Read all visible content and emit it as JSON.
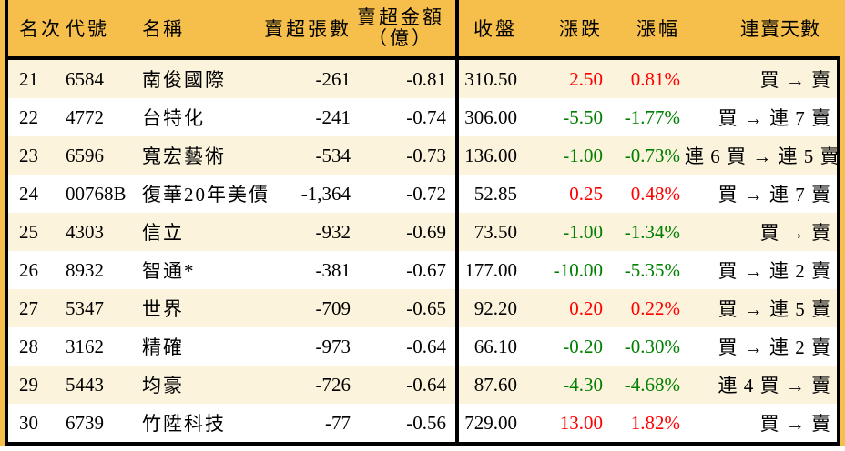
{
  "colors": {
    "page_and_header_bg": "#F6BF4C",
    "row_alt_bg": "#FCF3DC",
    "row_bg": "#FFFFFF",
    "border": "#000000",
    "gain_red": "#FF0000",
    "loss_green": "#008000"
  },
  "header": {
    "rank": "名次",
    "code": "代號",
    "name": "名稱",
    "sell_shares": "賣超張數",
    "sell_amount_line1": "賣超金額",
    "sell_amount_line2": "（億）",
    "close": "收盤",
    "change": "漲跌",
    "change_pct": "漲幅",
    "streak": "連賣天數"
  },
  "table": {
    "rows": [
      {
        "rank": "21",
        "code": "6584",
        "name": "南俊國際",
        "sell_shares": "-261",
        "sell_amount": "-0.81",
        "close": "310.50",
        "change": "2.50",
        "change_pct": "0.81%",
        "dir": "up",
        "streak": "買 → 賣"
      },
      {
        "rank": "22",
        "code": "4772",
        "name": "台特化",
        "sell_shares": "-241",
        "sell_amount": "-0.74",
        "close": "306.00",
        "change": "-5.50",
        "change_pct": "-1.77%",
        "dir": "down",
        "streak": "買 → 連 7 賣"
      },
      {
        "rank": "23",
        "code": "6596",
        "name": "寬宏藝術",
        "sell_shares": "-534",
        "sell_amount": "-0.73",
        "close": "136.00",
        "change": "-1.00",
        "change_pct": "-0.73%",
        "dir": "down",
        "streak": "連 6 買 → 連 5 賣"
      },
      {
        "rank": "24",
        "code": "00768B",
        "name": "復華20年美債",
        "sell_shares": "-1,364",
        "sell_amount": "-0.72",
        "close": "52.85",
        "change": "0.25",
        "change_pct": "0.48%",
        "dir": "up",
        "streak": "買 → 連 7 賣"
      },
      {
        "rank": "25",
        "code": "4303",
        "name": "信立",
        "sell_shares": "-932",
        "sell_amount": "-0.69",
        "close": "73.50",
        "change": "-1.00",
        "change_pct": "-1.34%",
        "dir": "down",
        "streak": "買 → 賣"
      },
      {
        "rank": "26",
        "code": "8932",
        "name": "智通*",
        "sell_shares": "-381",
        "sell_amount": "-0.67",
        "close": "177.00",
        "change": "-10.00",
        "change_pct": "-5.35%",
        "dir": "down",
        "streak": "買 → 連 2 賣"
      },
      {
        "rank": "27",
        "code": "5347",
        "name": "世界",
        "sell_shares": "-709",
        "sell_amount": "-0.65",
        "close": "92.20",
        "change": "0.20",
        "change_pct": "0.22%",
        "dir": "up",
        "streak": "買 → 連 5 賣"
      },
      {
        "rank": "28",
        "code": "3162",
        "name": "精確",
        "sell_shares": "-973",
        "sell_amount": "-0.64",
        "close": "66.10",
        "change": "-0.20",
        "change_pct": "-0.30%",
        "dir": "down",
        "streak": "買 → 連 2 賣"
      },
      {
        "rank": "29",
        "code": "5443",
        "name": "均豪",
        "sell_shares": "-726",
        "sell_amount": "-0.64",
        "close": "87.60",
        "change": "-4.30",
        "change_pct": "-4.68%",
        "dir": "down",
        "streak": "連 4 買 → 賣"
      },
      {
        "rank": "30",
        "code": "6739",
        "name": "竹陞科技",
        "sell_shares": "-77",
        "sell_amount": "-0.56",
        "close": "729.00",
        "change": "13.00",
        "change_pct": "1.82%",
        "dir": "up",
        "streak": "買 → 賣"
      }
    ]
  }
}
